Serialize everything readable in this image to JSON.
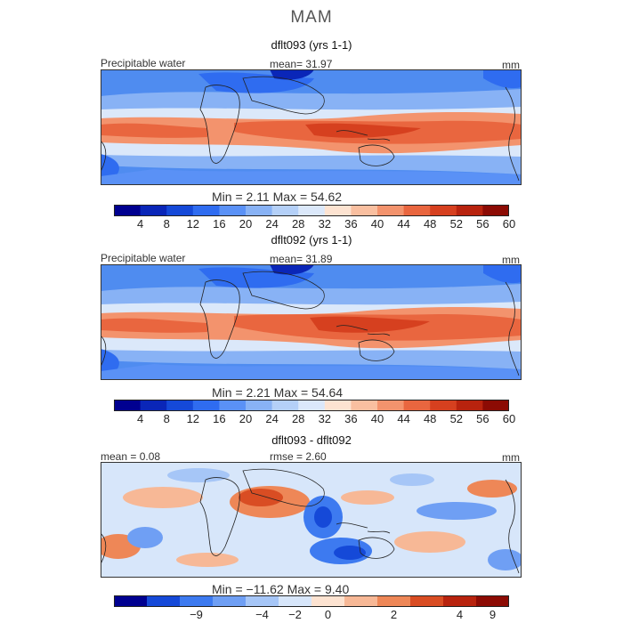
{
  "season": "MAM",
  "palette_main": [
    "#000090",
    "#0a26b8",
    "#1549d8",
    "#2f6cf0",
    "#5a91f6",
    "#88b2f5",
    "#b4d0f8",
    "#dbe8fa",
    "#fde3d1",
    "#f9bfa0",
    "#f3936d",
    "#e9663f",
    "#d6401f",
    "#b8230e",
    "#8c0b04"
  ],
  "palette_diff": [
    "#000090",
    "#1549d8",
    "#3d7af0",
    "#6f9ff4",
    "#a6c6f7",
    "#d7e6fa",
    "#fde3d1",
    "#f7b896",
    "#ee8757",
    "#d94d23",
    "#b8230e",
    "#8c0b04"
  ],
  "panels": [
    {
      "title": "dflt093 (yrs 1-1)",
      "var_label": "Precipitable water",
      "stat_text": "mean=   31.97",
      "units": "mm",
      "min_text": "Min =    2.11  Max =   54.62",
      "cb_labels": [
        "4",
        "8",
        "12",
        "16",
        "20",
        "24",
        "28",
        "32",
        "36",
        "40",
        "44",
        "48",
        "52",
        "56",
        "60"
      ]
    },
    {
      "title": "dflt092 (yrs 1-1)",
      "var_label": "Precipitable water",
      "stat_text": "mean=   31.89",
      "units": "mm",
      "min_text": "Min =    2.21  Max =   54.64",
      "cb_labels": [
        "4",
        "8",
        "12",
        "16",
        "20",
        "24",
        "28",
        "32",
        "36",
        "40",
        "44",
        "48",
        "52",
        "56",
        "60"
      ]
    },
    {
      "title": "dflt093 - dflt092",
      "var_label": "mean =   0.08",
      "stat_text": "rmse =    2.60",
      "units": "mm",
      "min_text": "Min = −11.62  Max =    9.40",
      "cb_labels": [
        "−9",
        "−4",
        "−2",
        "0",
        "2",
        "4",
        "9"
      ]
    }
  ],
  "chart_data": [
    {
      "type": "heatmap",
      "title": "dflt093 (yrs 1-1)",
      "variable": "Precipitable water",
      "units": "mm",
      "mean": 31.97,
      "min": 2.11,
      "max": 54.62,
      "levels": [
        4,
        8,
        12,
        16,
        20,
        24,
        28,
        32,
        36,
        40,
        44,
        48,
        52,
        56,
        60
      ]
    },
    {
      "type": "heatmap",
      "title": "dflt092 (yrs 1-1)",
      "variable": "Precipitable water",
      "units": "mm",
      "mean": 31.89,
      "min": 2.21,
      "max": 54.64,
      "levels": [
        4,
        8,
        12,
        16,
        20,
        24,
        28,
        32,
        36,
        40,
        44,
        48,
        52,
        56,
        60
      ]
    },
    {
      "type": "heatmap",
      "title": "dflt093 - dflt092",
      "units": "mm",
      "mean": 0.08,
      "rmse": 2.6,
      "min": -11.62,
      "max": 9.4,
      "levels": [
        -9,
        -4,
        -2,
        0,
        2,
        4,
        9
      ]
    }
  ]
}
